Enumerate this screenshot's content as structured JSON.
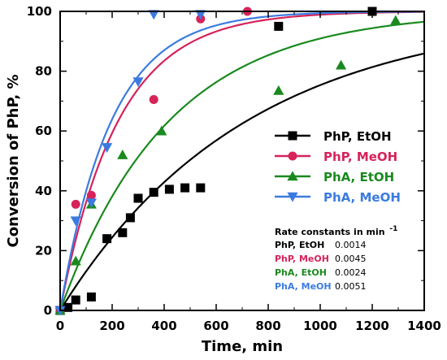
{
  "chart_data": {
    "type": "scatter",
    "xlabel": "Time, min",
    "ylabel": "Conversion of PhP, %",
    "xlim": [
      0,
      1400
    ],
    "ylim": [
      0,
      100
    ],
    "xticks": [
      "0",
      "200",
      "400",
      "600",
      "800",
      "1000",
      "1200",
      "1400"
    ],
    "yticks": [
      "0",
      "20",
      "40",
      "60",
      "80",
      "100"
    ],
    "grid": false,
    "legend_position": "right-middle",
    "series": [
      {
        "name": "PhP, EtOH",
        "color": "#000000",
        "marker": "square",
        "rate_constant": 0.0014,
        "x": [
          0,
          30,
          60,
          120,
          180,
          240,
          270,
          300,
          360,
          420,
          480,
          540,
          840,
          1200
        ],
        "y": [
          0,
          1,
          3.5,
          4.5,
          24,
          26,
          31,
          37.5,
          39.5,
          40.5,
          41,
          41,
          95,
          100
        ]
      },
      {
        "name": "PhP, MeOH",
        "color": "#d6235a",
        "marker": "circle",
        "rate_constant": 0.0045,
        "x": [
          0,
          60,
          120,
          360,
          540,
          720
        ],
        "y": [
          0,
          35.5,
          38.5,
          70.5,
          97.5,
          100
        ]
      },
      {
        "name": "PhA, EtOH",
        "color": "#1a8a1f",
        "marker": "triangle-up",
        "rate_constant": 0.0024,
        "x": [
          0,
          60,
          120,
          240,
          390,
          840,
          1080,
          1290
        ],
        "y": [
          0,
          16.5,
          35.5,
          52,
          60,
          73.5,
          82,
          97
        ]
      },
      {
        "name": "PhA, MeOH",
        "color": "#3b7be0",
        "marker": "triangle-down",
        "rate_constant": 0.0051,
        "x": [
          0,
          60,
          120,
          180,
          300,
          360,
          540
        ],
        "y": [
          0,
          30,
          36,
          54.5,
          76.5,
          99,
          99
        ]
      }
    ],
    "annotation": {
      "title": "Rate constants in min",
      "superscript": "-1",
      "rows": [
        {
          "name": "PhP, EtOH",
          "value": "0.0014"
        },
        {
          "name": "PhP, MeOH",
          "value": "0.0045"
        },
        {
          "name": "PhA, EtOH",
          "value": "0.0024"
        },
        {
          "name": "PhA, MeOH",
          "value": "0.0051"
        }
      ]
    }
  }
}
